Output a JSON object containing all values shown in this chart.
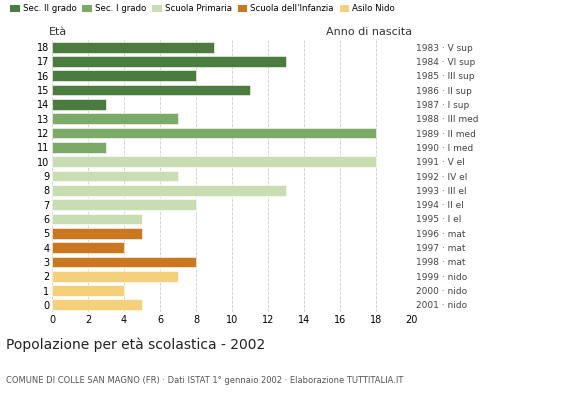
{
  "ages": [
    18,
    17,
    16,
    15,
    14,
    13,
    12,
    11,
    10,
    9,
    8,
    7,
    6,
    5,
    4,
    3,
    2,
    1,
    0
  ],
  "values": [
    9,
    13,
    8,
    11,
    3,
    7,
    18,
    3,
    18,
    7,
    13,
    8,
    5,
    5,
    4,
    8,
    7,
    4,
    5
  ],
  "right_labels": [
    "1983 · V sup",
    "1984 · VI sup",
    "1985 · III sup",
    "1986 · II sup",
    "1987 · I sup",
    "1988 · III med",
    "1989 · II med",
    "1990 · I med",
    "1991 · V el",
    "1992 · IV el",
    "1993 · III el",
    "1994 · II el",
    "1995 · I el",
    "1996 · mat",
    "1997 · mat",
    "1998 · mat",
    "1999 · nido",
    "2000 · nido",
    "2001 · nido"
  ],
  "age_categories": {
    "18": "Sec. II grado",
    "17": "Sec. II grado",
    "16": "Sec. II grado",
    "15": "Sec. II grado",
    "14": "Sec. II grado",
    "13": "Sec. I grado",
    "12": "Sec. I grado",
    "11": "Sec. I grado",
    "10": "Scuola Primaria",
    "9": "Scuola Primaria",
    "8": "Scuola Primaria",
    "7": "Scuola Primaria",
    "6": "Scuola Primaria",
    "5": "Scuola dell'Infanzia",
    "4": "Scuola dell'Infanzia",
    "3": "Scuola dell'Infanzia",
    "2": "Asilo Nido",
    "1": "Asilo Nido",
    "0": "Asilo Nido"
  },
  "category_colors": {
    "Sec. II grado": "#4a7c3f",
    "Sec. I grado": "#7aaa65",
    "Scuola Primaria": "#c8ddb2",
    "Scuola dell'Infanzia": "#c97820",
    "Asilo Nido": "#f5d07a"
  },
  "legend_order": [
    "Sec. II grado",
    "Sec. I grado",
    "Scuola Primaria",
    "Scuola dell'Infanzia",
    "Asilo Nido"
  ],
  "title": "Popolazione per età scolastica - 2002",
  "subtitle": "COMUNE DI COLLE SAN MAGNO (FR) · Dati ISTAT 1° gennaio 2002 · Elaborazione TUTTITALIA.IT",
  "label_eta": "Età",
  "label_anno": "Anno di nascita",
  "xlim": [
    0,
    20
  ],
  "xticks": [
    0,
    2,
    4,
    6,
    8,
    10,
    12,
    14,
    16,
    18,
    20
  ],
  "background_color": "#ffffff",
  "grid_color": "#cccccc",
  "bar_height": 0.75
}
